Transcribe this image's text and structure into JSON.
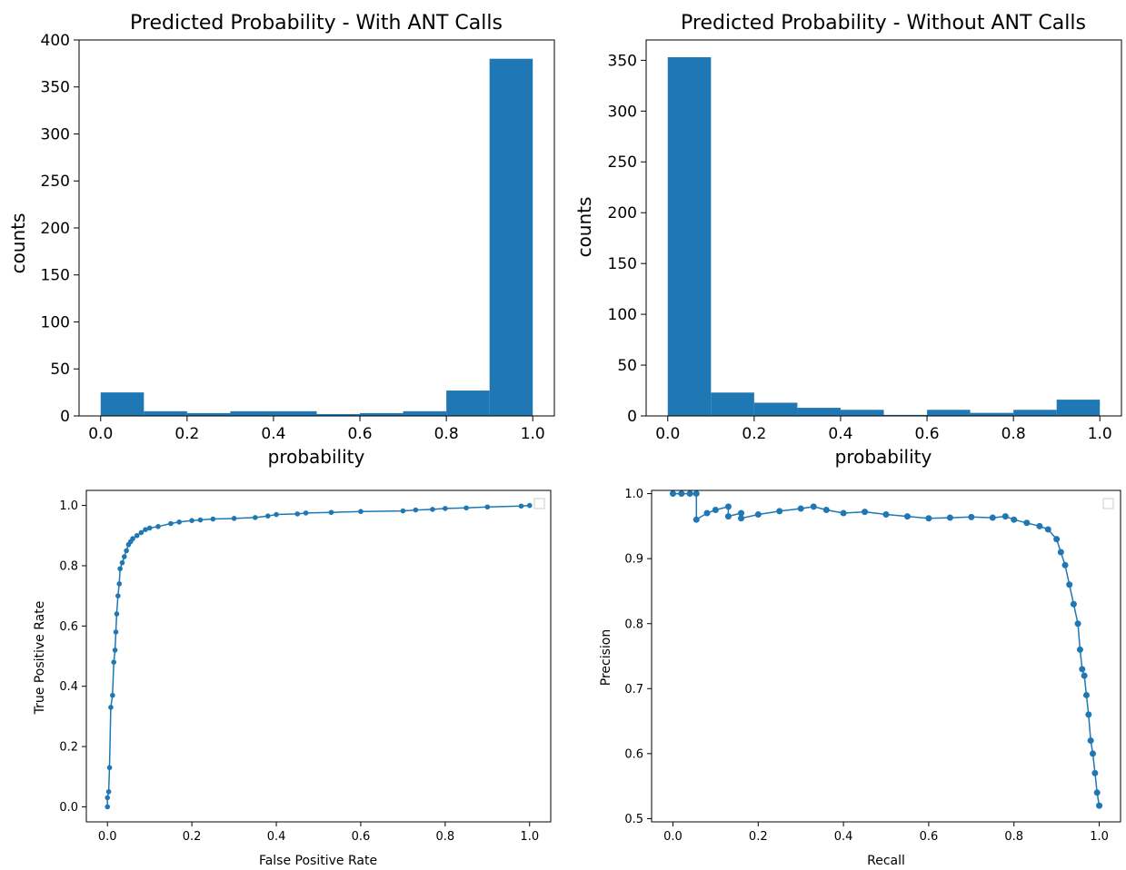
{
  "chart_data": [
    {
      "type": "bar",
      "title": "Predicted Probability - With ANT Calls",
      "xlabel": "probability",
      "ylabel": "counts",
      "xlim": [
        -0.05,
        1.05
      ],
      "ylim": [
        0,
        400
      ],
      "xticks": [
        "0.0",
        "0.2",
        "0.4",
        "0.6",
        "0.8",
        "1.0"
      ],
      "yticks": [
        "0",
        "50",
        "100",
        "150",
        "200",
        "250",
        "300",
        "350",
        "400"
      ],
      "bin_edges": [
        0.0,
        0.1,
        0.2,
        0.3,
        0.4,
        0.5,
        0.6,
        0.7,
        0.8,
        0.9,
        1.0
      ],
      "values": [
        25,
        5,
        3,
        5,
        5,
        2,
        3,
        5,
        27,
        380
      ],
      "color": "#1f77b4",
      "grid": false
    },
    {
      "type": "bar",
      "title": "Predicted Probability - Without ANT Calls",
      "xlabel": "probability",
      "ylabel": "counts",
      "xlim": [
        -0.05,
        1.05
      ],
      "ylim": [
        0,
        370
      ],
      "xticks": [
        "0.0",
        "0.2",
        "0.4",
        "0.6",
        "0.8",
        "1.0"
      ],
      "yticks": [
        "0",
        "50",
        "100",
        "150",
        "200",
        "250",
        "300",
        "350"
      ],
      "bin_edges": [
        0.0,
        0.1,
        0.2,
        0.3,
        0.4,
        0.5,
        0.6,
        0.7,
        0.8,
        0.9,
        1.0
      ],
      "values": [
        353,
        23,
        13,
        8,
        6,
        1,
        6,
        3,
        6,
        16
      ],
      "color": "#1f77b4",
      "grid": false
    },
    {
      "type": "line",
      "title": "",
      "xlabel": "False Positive Rate",
      "ylabel": "True Positive Rate",
      "xlim": [
        -0.05,
        1.05
      ],
      "ylim": [
        -0.05,
        1.05
      ],
      "xticks": [
        "0.0",
        "0.2",
        "0.4",
        "0.6",
        "0.8",
        "1.0"
      ],
      "yticks": [
        "0.0",
        "0.2",
        "0.4",
        "0.6",
        "0.8",
        "1.0"
      ],
      "x": [
        0.0,
        0.0,
        0.003,
        0.005,
        0.008,
        0.012,
        0.015,
        0.018,
        0.02,
        0.022,
        0.025,
        0.028,
        0.03,
        0.035,
        0.04,
        0.045,
        0.05,
        0.055,
        0.06,
        0.07,
        0.08,
        0.09,
        0.1,
        0.12,
        0.15,
        0.17,
        0.2,
        0.22,
        0.25,
        0.3,
        0.35,
        0.38,
        0.4,
        0.45,
        0.47,
        0.53,
        0.6,
        0.7,
        0.73,
        0.77,
        0.8,
        0.85,
        0.9,
        0.98,
        1.0
      ],
      "y": [
        0.0,
        0.03,
        0.05,
        0.13,
        0.33,
        0.37,
        0.48,
        0.52,
        0.58,
        0.64,
        0.7,
        0.74,
        0.79,
        0.81,
        0.83,
        0.85,
        0.87,
        0.88,
        0.89,
        0.9,
        0.91,
        0.92,
        0.925,
        0.93,
        0.94,
        0.945,
        0.95,
        0.952,
        0.955,
        0.957,
        0.96,
        0.965,
        0.97,
        0.972,
        0.975,
        0.977,
        0.98,
        0.982,
        0.985,
        0.987,
        0.99,
        0.992,
        0.995,
        0.998,
        1.0
      ],
      "color": "#1f77b4",
      "marker": "dot",
      "grid": false
    },
    {
      "type": "line",
      "title": "",
      "xlabel": "Recall",
      "ylabel": "Precision",
      "xlim": [
        -0.05,
        1.05
      ],
      "ylim": [
        0.495,
        1.005
      ],
      "xticks": [
        "0.0",
        "0.2",
        "0.4",
        "0.6",
        "0.8",
        "1.0"
      ],
      "yticks": [
        "0.5",
        "0.6",
        "0.7",
        "0.8",
        "0.9",
        "1.0"
      ],
      "x": [
        0.0,
        0.02,
        0.04,
        0.055,
        0.055,
        0.08,
        0.1,
        0.13,
        0.13,
        0.16,
        0.16,
        0.2,
        0.25,
        0.3,
        0.33,
        0.36,
        0.4,
        0.45,
        0.5,
        0.55,
        0.6,
        0.65,
        0.7,
        0.75,
        0.78,
        0.8,
        0.83,
        0.86,
        0.88,
        0.9,
        0.91,
        0.92,
        0.93,
        0.94,
        0.95,
        0.955,
        0.96,
        0.965,
        0.97,
        0.975,
        0.98,
        0.985,
        0.99,
        0.995,
        1.0
      ],
      "y": [
        1.0,
        1.0,
        1.0,
        1.0,
        0.96,
        0.97,
        0.975,
        0.98,
        0.965,
        0.97,
        0.962,
        0.968,
        0.973,
        0.977,
        0.98,
        0.975,
        0.97,
        0.972,
        0.968,
        0.965,
        0.962,
        0.963,
        0.964,
        0.963,
        0.965,
        0.96,
        0.955,
        0.95,
        0.945,
        0.93,
        0.91,
        0.89,
        0.86,
        0.83,
        0.8,
        0.76,
        0.73,
        0.72,
        0.69,
        0.66,
        0.62,
        0.6,
        0.57,
        0.54,
        0.52
      ],
      "color": "#1f77b4",
      "marker": "dot",
      "grid": false
    }
  ]
}
